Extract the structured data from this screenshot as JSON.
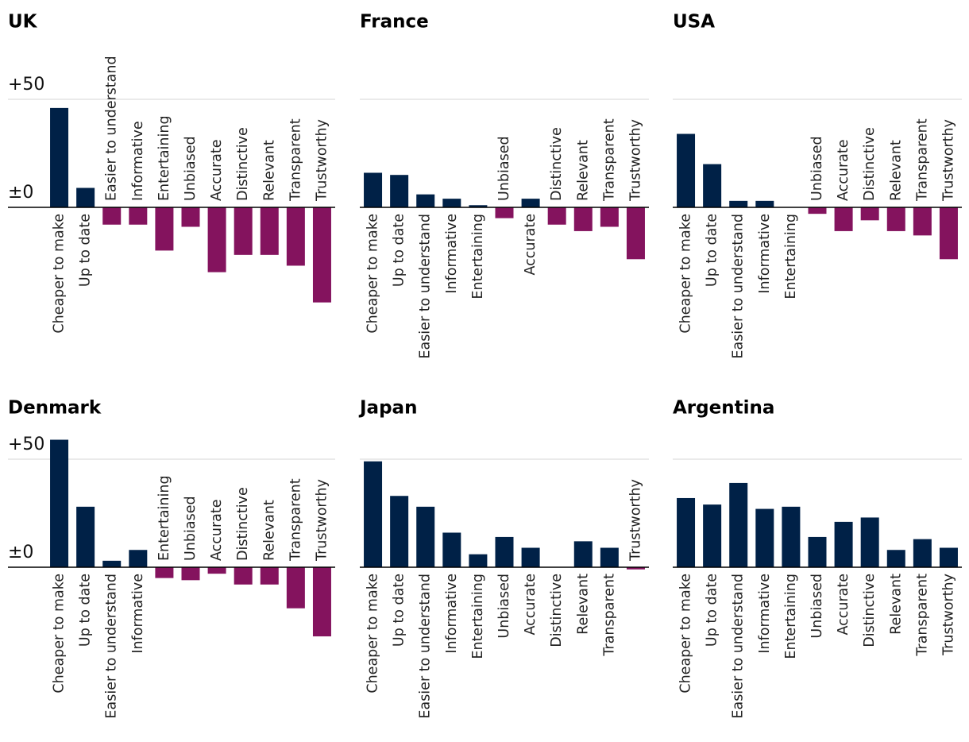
{
  "chart_data": [
    {
      "type": "bar",
      "title": "UK",
      "color": "#002147",
      "negative_color": "#84135e",
      "categories": [
        "Cheaper to make",
        "Up to date",
        "Easier to understand",
        "Informative",
        "Entertaining",
        "Unbiased",
        "Accurate",
        "Distinctive",
        "Relevant",
        "Transparent",
        "Trustworthy"
      ],
      "values": [
        46,
        9,
        -8,
        -8,
        -20,
        -9,
        -30,
        -22,
        -22,
        -27,
        -44
      ],
      "ylim": [
        -50,
        50
      ],
      "yticks": [
        {
          "value": 0,
          "label": "±0"
        },
        {
          "value": 50,
          "label": "+50"
        }
      ],
      "grid": true
    },
    {
      "type": "bar",
      "title": "France",
      "color": "#002147",
      "negative_color": "#84135e",
      "categories": [
        "Cheaper to make",
        "Up to date",
        "Easier to understand",
        "Informative",
        "Entertaining",
        "Unbiased",
        "Accurate",
        "Distinctive",
        "Relevant",
        "Transparent",
        "Trustworthy"
      ],
      "values": [
        16,
        15,
        6,
        4,
        1,
        -5,
        4,
        -8,
        -11,
        -9,
        -24
      ],
      "ylim": [
        -50,
        50
      ],
      "yticks": [
        0,
        50
      ],
      "grid": true
    },
    {
      "type": "bar",
      "title": "USA",
      "color": "#002147",
      "negative_color": "#84135e",
      "categories": [
        "Cheaper to make",
        "Up to date",
        "Easier to understand",
        "Informative",
        "Entertaining",
        "Unbiased",
        "Accurate",
        "Distinctive",
        "Relevant",
        "Transparent",
        "Trustworthy"
      ],
      "values": [
        34,
        20,
        3,
        3,
        0,
        -3,
        -11,
        -6,
        -11,
        -13,
        -24
      ],
      "ylim": [
        -50,
        50
      ],
      "yticks": [
        0,
        50
      ],
      "grid": true
    },
    {
      "type": "bar",
      "title": "Denmark",
      "color": "#002147",
      "negative_color": "#84135e",
      "categories": [
        "Cheaper to make",
        "Up to date",
        "Easier to understand",
        "Informative",
        "Entertaining",
        "Unbiased",
        "Accurate",
        "Distinctive",
        "Relevant",
        "Transparent",
        "Trustworthy"
      ],
      "values": [
        59,
        28,
        3,
        8,
        -5,
        -6,
        -3,
        -8,
        -8,
        -19,
        -32
      ],
      "ylim": [
        -35,
        60
      ],
      "yticks": [
        {
          "value": 0,
          "label": "±0"
        },
        {
          "value": 50,
          "label": "+50"
        }
      ],
      "grid": true
    },
    {
      "type": "bar",
      "title": "Japan",
      "color": "#002147",
      "negative_color": "#84135e",
      "categories": [
        "Cheaper to make",
        "Up to date",
        "Easier to understand",
        "Informative",
        "Entertaining",
        "Unbiased",
        "Accurate",
        "Distinctive",
        "Relevant",
        "Transparent",
        "Trustworthy"
      ],
      "values": [
        49,
        33,
        28,
        16,
        6,
        14,
        9,
        0,
        12,
        9,
        -1
      ],
      "ylim": [
        -35,
        60
      ],
      "yticks": [
        0,
        50
      ],
      "grid": true
    },
    {
      "type": "bar",
      "title": "Argentina",
      "color": "#002147",
      "negative_color": "#84135e",
      "categories": [
        "Cheaper to make",
        "Up to date",
        "Easier to understand",
        "Informative",
        "Entertaining",
        "Unbiased",
        "Accurate",
        "Distinctive",
        "Relevant",
        "Transparent",
        "Trustworthy"
      ],
      "values": [
        32,
        29,
        39,
        27,
        28,
        14,
        21,
        23,
        8,
        13,
        9
      ],
      "ylim": [
        -35,
        60
      ],
      "yticks": [
        0,
        50
      ],
      "grid": true
    }
  ]
}
